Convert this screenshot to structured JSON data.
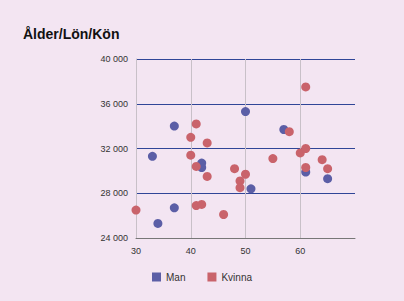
{
  "chart_data": {
    "type": "scatter",
    "title": "Ålder/Lön/Kön",
    "xlim": [
      30,
      70
    ],
    "xticks": [
      30,
      40,
      50,
      60
    ],
    "ylim": [
      24000,
      40000
    ],
    "yticks": [
      {
        "value": 24000,
        "label": "24 000"
      },
      {
        "value": 28000,
        "label": "28 000"
      },
      {
        "value": 32000,
        "label": "32 000"
      },
      {
        "value": 36000,
        "label": "36 000"
      },
      {
        "value": 40000,
        "label": "40 000"
      }
    ],
    "grid": true,
    "legend": "bottom",
    "marker": "circle",
    "series": [
      {
        "name": "Man",
        "color": "#5b5ea6",
        "x": [
          37,
          33,
          37,
          34,
          42,
          42,
          50,
          51,
          57,
          61,
          65
        ],
        "values": [
          34000,
          31300,
          26700,
          25300,
          30700,
          30300,
          35300,
          28400,
          33700,
          29900,
          29300
        ]
      },
      {
        "name": "Kvinna",
        "color": "#c9636b",
        "x": [
          30,
          40,
          40,
          41,
          41,
          43,
          43,
          41,
          42,
          46,
          48,
          49,
          49,
          50,
          55,
          58,
          60,
          61,
          61,
          61,
          64,
          65
        ],
        "values": [
          26500,
          33000,
          31400,
          34200,
          30400,
          32500,
          29500,
          26900,
          27000,
          26100,
          30200,
          29100,
          28500,
          29700,
          31100,
          33500,
          31600,
          32000,
          37500,
          30300,
          31000,
          30200
        ]
      }
    ]
  }
}
